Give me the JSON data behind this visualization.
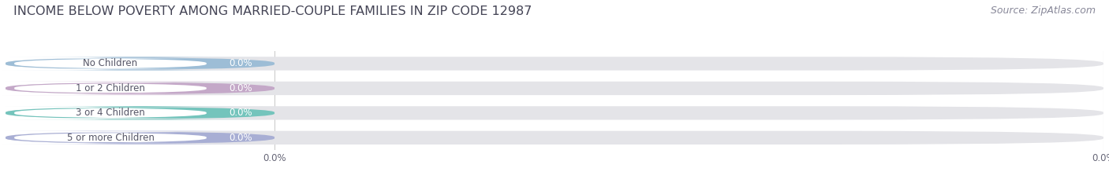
{
  "title": "INCOME BELOW POVERTY AMONG MARRIED-COUPLE FAMILIES IN ZIP CODE 12987",
  "source": "Source: ZipAtlas.com",
  "categories": [
    "No Children",
    "1 or 2 Children",
    "3 or 4 Children",
    "5 or more Children"
  ],
  "values": [
    0.0,
    0.0,
    0.0,
    0.0
  ],
  "bar_colors": [
    "#9dbdd6",
    "#c4a8c8",
    "#74c4bc",
    "#a8aed4"
  ],
  "bar_bg_color": "#e4e4e8",
  "background_color": "#ffffff",
  "text_color": "#555566",
  "value_label_color": "#ffffff",
  "white_pill_color": "#ffffff",
  "figsize": [
    14.06,
    2.33
  ],
  "dpi": 100,
  "title_fontsize": 11.5,
  "label_fontsize": 8.5,
  "tick_fontsize": 8.5,
  "source_fontsize": 9
}
